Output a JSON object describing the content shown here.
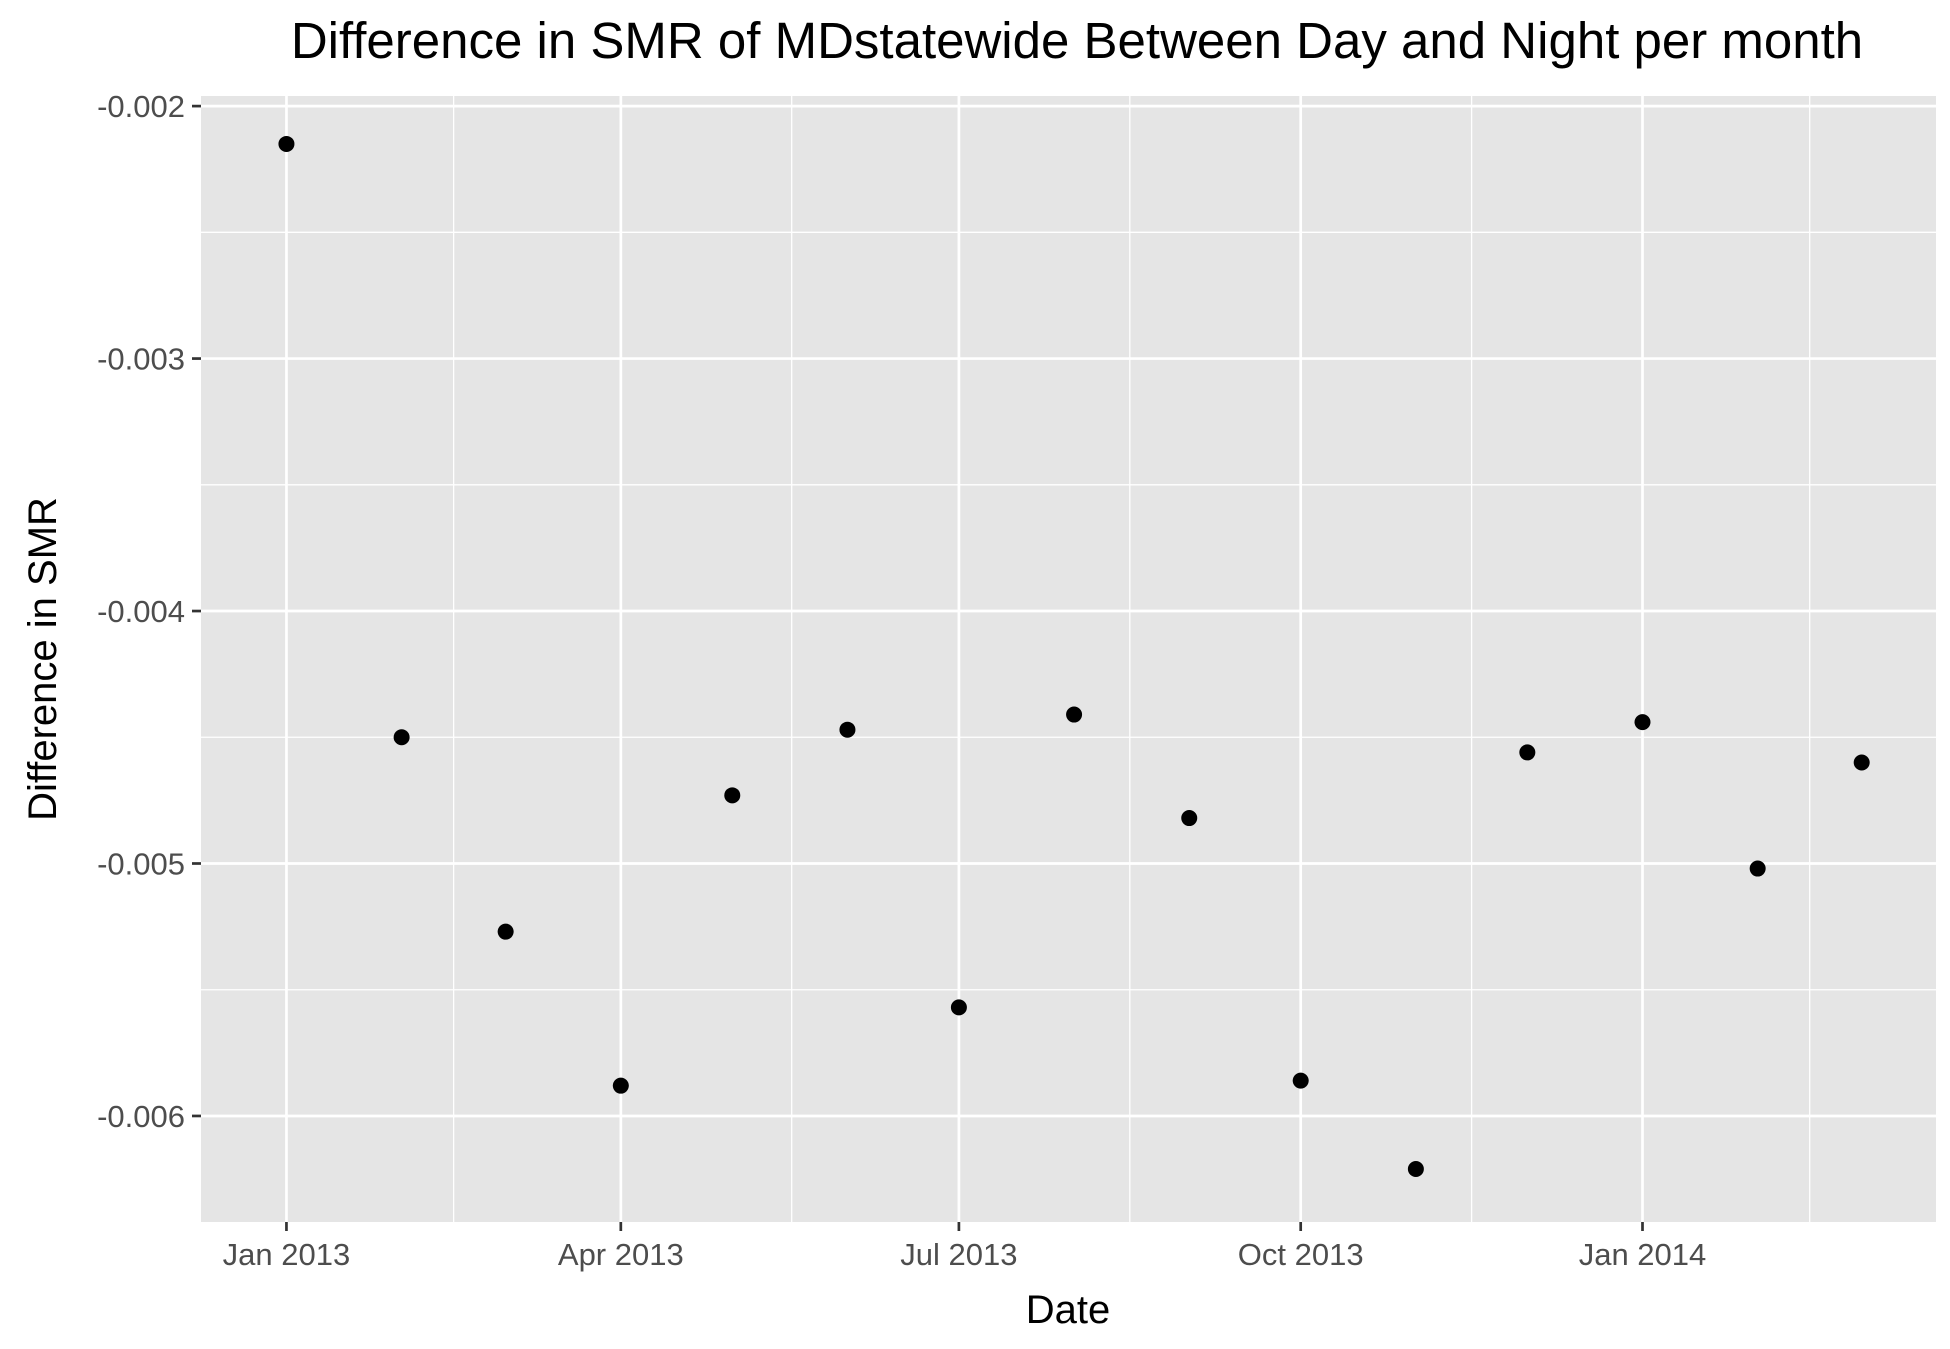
{
  "chart_data": {
    "type": "scatter",
    "title": "Difference in SMR of MDstatewide Between Day and Night per month",
    "xlabel": "Date",
    "ylabel": "Difference in SMR",
    "x_ticks": [
      {
        "date": "2013-01-01",
        "label": "Jan 2013"
      },
      {
        "date": "2013-04-01",
        "label": "Apr 2013"
      },
      {
        "date": "2013-07-01",
        "label": "Jul 2013"
      },
      {
        "date": "2013-10-01",
        "label": "Oct 2013"
      },
      {
        "date": "2014-01-01",
        "label": "Jan 2014"
      }
    ],
    "y_ticks": [
      {
        "value": -0.002,
        "label": "-0.002"
      },
      {
        "value": -0.003,
        "label": "-0.003"
      },
      {
        "value": -0.004,
        "label": "-0.004"
      },
      {
        "value": -0.005,
        "label": "-0.005"
      },
      {
        "value": -0.006,
        "label": "-0.006"
      }
    ],
    "xlim": [
      "2012-12-09",
      "2014-03-21"
    ],
    "ylim": [
      -0.00642,
      -0.00196
    ],
    "grid": true,
    "points": [
      {
        "x": "2013-01-01",
        "y": -0.00215
      },
      {
        "x": "2013-02-01",
        "y": -0.0045
      },
      {
        "x": "2013-03-01",
        "y": -0.00527
      },
      {
        "x": "2013-04-01",
        "y": -0.00588
      },
      {
        "x": "2013-05-01",
        "y": -0.00473
      },
      {
        "x": "2013-06-01",
        "y": -0.00447
      },
      {
        "x": "2013-07-01",
        "y": -0.00557
      },
      {
        "x": "2013-08-01",
        "y": -0.00441
      },
      {
        "x": "2013-09-01",
        "y": -0.00482
      },
      {
        "x": "2013-10-01",
        "y": -0.00586
      },
      {
        "x": "2013-11-01",
        "y": -0.00621
      },
      {
        "x": "2013-12-01",
        "y": -0.00456
      },
      {
        "x": "2014-01-01",
        "y": -0.00444
      },
      {
        "x": "2014-02-01",
        "y": -0.00502
      },
      {
        "x": "2014-03-01",
        "y": -0.0046
      }
    ],
    "colors": {
      "panel_background": "#e5e5e5",
      "grid_line": "#ffffff",
      "point": "#000000",
      "tick_label": "#4d4d4d",
      "tick_mark": "#333333"
    }
  }
}
